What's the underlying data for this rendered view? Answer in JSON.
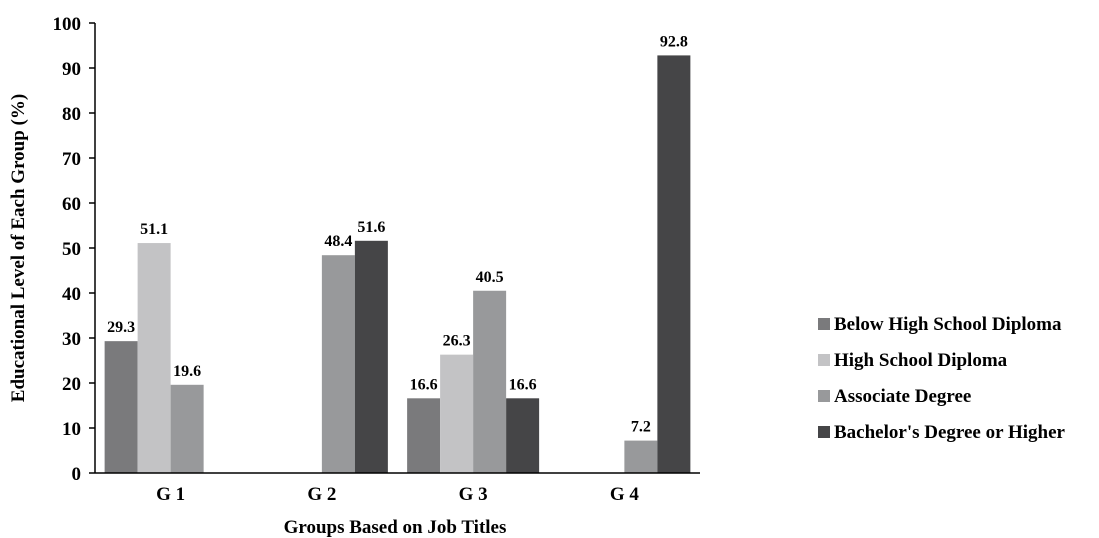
{
  "chart_data": {
    "type": "bar",
    "categories": [
      "G 1",
      "G 2",
      "G 3",
      "G 4"
    ],
    "xlabel": "Groups Based on Job Titles",
    "ylabel": "Educational Level of Each Group (%)",
    "ylim": [
      0,
      100
    ],
    "yticks": [
      0,
      10,
      20,
      30,
      40,
      50,
      60,
      70,
      80,
      90,
      100
    ],
    "grid": false,
    "legend_position": "right",
    "series": [
      {
        "name": "Below High School Diploma",
        "color": "#7a7a7c",
        "values": [
          29.3,
          null,
          16.6,
          null
        ]
      },
      {
        "name": "High School Diploma",
        "color": "#c3c3c5",
        "values": [
          51.1,
          null,
          26.3,
          null
        ]
      },
      {
        "name": "Associate Degree",
        "color": "#98999b",
        "values": [
          19.6,
          48.4,
          40.5,
          7.2
        ]
      },
      {
        "name": "Bachelor's Degree or Higher",
        "color": "#454547",
        "values": [
          null,
          51.6,
          16.6,
          92.8
        ]
      }
    ]
  }
}
